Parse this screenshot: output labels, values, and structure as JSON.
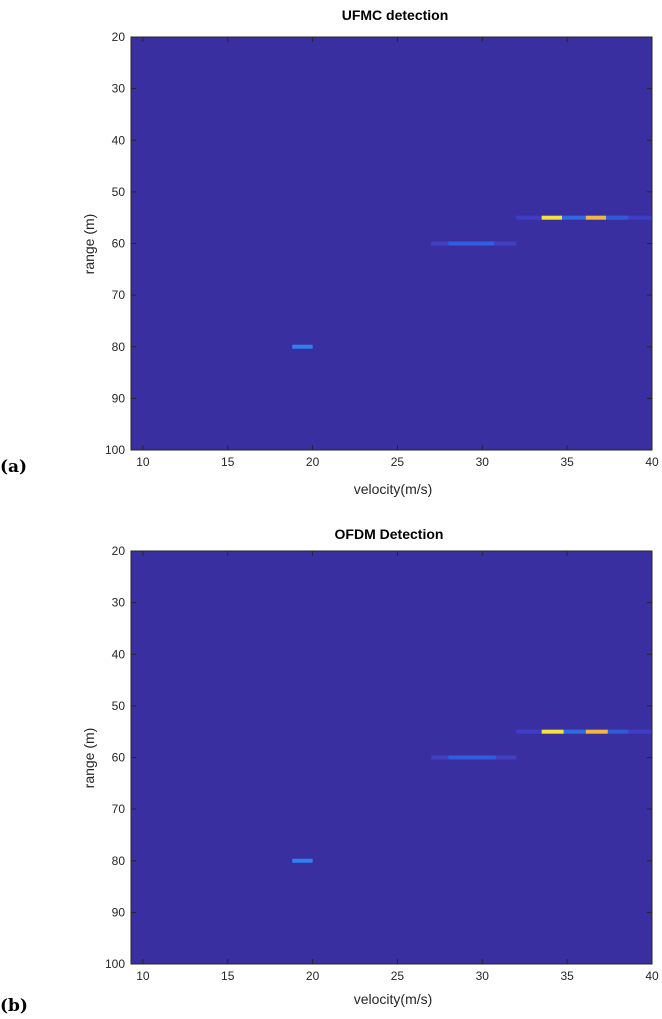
{
  "chart_data": [
    {
      "type": "heatmap",
      "panel_label": "(a)",
      "title": "UFMC detection",
      "xlabel": "velocity(m/s)",
      "ylabel": "range (m)",
      "xlim": [
        9.3,
        40
      ],
      "ylim": [
        20,
        100
      ],
      "y_reversed": true,
      "xticks": [
        10,
        15,
        20,
        25,
        30,
        35,
        40
      ],
      "yticks": [
        20,
        30,
        40,
        50,
        60,
        70,
        80,
        90,
        100
      ],
      "background_color": "#3a2fa0",
      "detections": [
        {
          "x0": 32.0,
          "x1": 40.0,
          "y": 55,
          "color": "#3f3cc8"
        },
        {
          "x0": 33.5,
          "x1": 34.7,
          "y": 55,
          "color": "#f5e33a"
        },
        {
          "x0": 34.7,
          "x1": 36.1,
          "y": 55,
          "color": "#2f6be0"
        },
        {
          "x0": 36.1,
          "x1": 37.3,
          "y": 55,
          "color": "#f2b740"
        },
        {
          "x0": 37.3,
          "x1": 38.6,
          "y": 55,
          "color": "#2f5bd8"
        },
        {
          "x0": 27.0,
          "x1": 32.0,
          "y": 60,
          "color": "#4040c0"
        },
        {
          "x0": 28.0,
          "x1": 30.7,
          "y": 60,
          "color": "#2f5fe0"
        },
        {
          "x0": 18.8,
          "x1": 20.0,
          "y": 80,
          "color": "#2e82f0"
        }
      ]
    },
    {
      "type": "heatmap",
      "panel_label": "(b)",
      "title": "OFDM Detection",
      "xlabel": "velocity(m/s)",
      "ylabel": "range (m)",
      "xlim": [
        9.3,
        40
      ],
      "ylim": [
        20,
        100
      ],
      "y_reversed": true,
      "xticks": [
        10,
        15,
        20,
        25,
        30,
        35,
        40
      ],
      "yticks": [
        20,
        30,
        40,
        50,
        60,
        70,
        80,
        90,
        100
      ],
      "background_color": "#3a2fa0",
      "detections": [
        {
          "x0": 32.0,
          "x1": 40.0,
          "y": 55,
          "color": "#3f3cc8"
        },
        {
          "x0": 33.5,
          "x1": 34.8,
          "y": 55,
          "color": "#f5e33a"
        },
        {
          "x0": 34.8,
          "x1": 36.1,
          "y": 55,
          "color": "#2f6be0"
        },
        {
          "x0": 36.1,
          "x1": 37.4,
          "y": 55,
          "color": "#f2b740"
        },
        {
          "x0": 37.4,
          "x1": 38.6,
          "y": 55,
          "color": "#2f5bd8"
        },
        {
          "x0": 27.0,
          "x1": 32.0,
          "y": 60,
          "color": "#4040c0"
        },
        {
          "x0": 28.0,
          "x1": 30.8,
          "y": 60,
          "color": "#2f5fe0"
        },
        {
          "x0": 18.8,
          "x1": 20.0,
          "y": 80,
          "color": "#2e82f0"
        }
      ]
    }
  ]
}
